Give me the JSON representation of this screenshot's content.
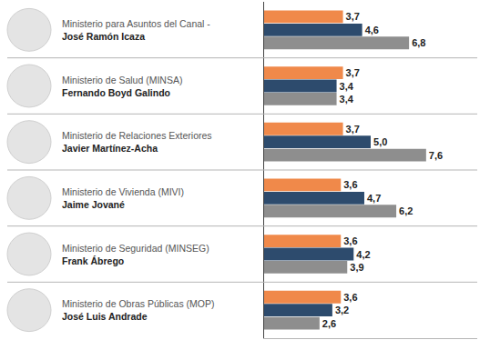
{
  "chart_data": {
    "type": "bar",
    "orientation": "horizontal",
    "data_labels": true,
    "tick_labels": false,
    "grid": false,
    "categories": [
      "Ministerio para Asuntos del Canal -\nJosé Ramón Icaza",
      "Ministerio de Salud (MINSA)\nFernando Boyd Galindo",
      "Ministerio de Relaciones Exteriores\nJavier Martínez-Acha",
      "Ministerio de Vivienda (MIVI)\nJaime Jované",
      "Ministerio de Seguridad (MINSEG)\nFrank Ábrego",
      "Ministerio de Obras Públicas (MOP)\nJosé Luis Andrade"
    ],
    "series": [
      {
        "color": "#f0894a",
        "values": [
          3.7,
          3.7,
          3.7,
          3.6,
          3.6,
          3.6
        ],
        "value_labels": [
          "3,7",
          "3,7",
          "3,7",
          "3,6",
          "3,6",
          "3,6"
        ]
      },
      {
        "color": "#2d4b6d",
        "values": [
          4.6,
          3.4,
          5.0,
          4.7,
          4.2,
          3.2
        ],
        "value_labels": [
          "4,6",
          "3,4",
          "5,0",
          "4,7",
          "4,2",
          "3,2"
        ]
      },
      {
        "color": "#8e8e8e",
        "values": [
          6.8,
          3.4,
          7.6,
          6.2,
          3.9,
          2.6
        ],
        "value_labels": [
          "6,8",
          "3,4",
          "7,6",
          "6,2",
          "3,9",
          "2,6"
        ]
      }
    ],
    "xlim": [
      0,
      10
    ],
    "xticks": []
  }
}
